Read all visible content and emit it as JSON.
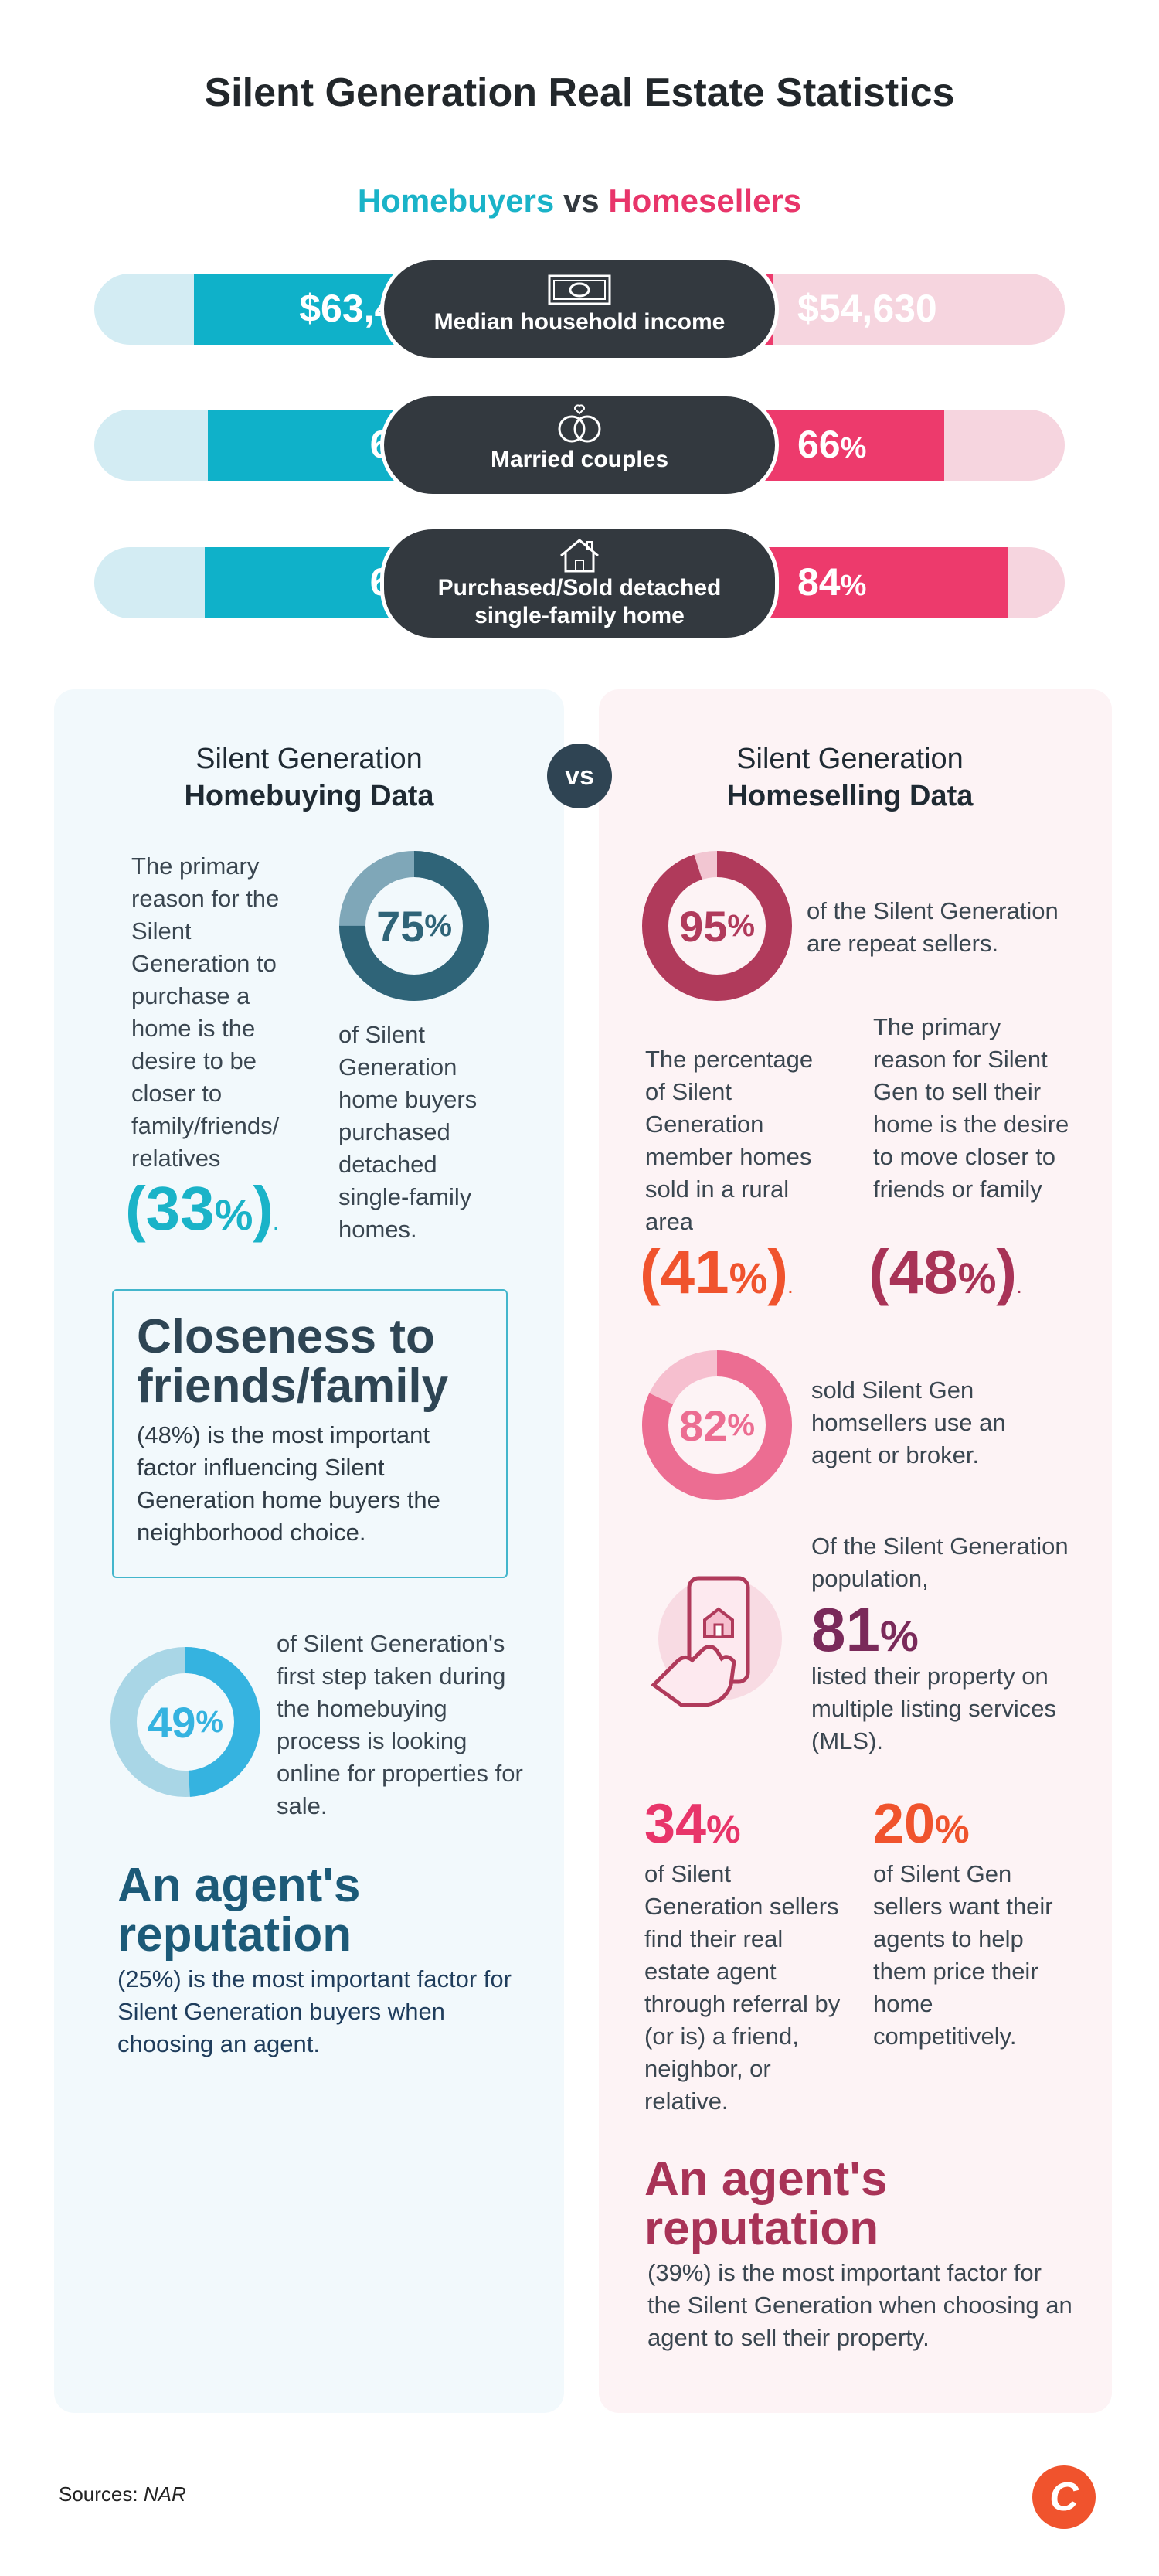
{
  "header": {
    "title": "Silent Generation Real Estate Statistics",
    "buyers_label": "Homebuyers",
    "vs_label": "vs",
    "sellers_label": "Homesellers"
  },
  "comparison": [
    {
      "label": "Median household income",
      "buyer": "$63,400",
      "seller": "$54,630",
      "icon": "money-icon"
    },
    {
      "label": "Married couples",
      "buyer": "68",
      "seller": "66",
      "icon": "rings-icon"
    },
    {
      "label": "Purchased/Sold detached single-family home",
      "buyer": "69",
      "seller": "84",
      "icon": "house-icon"
    }
  ],
  "comparison_fill": [
    {
      "buyer": 0.72,
      "seller": 0.18
    },
    {
      "buyer": 0.68,
      "seller": 0.66
    },
    {
      "buyer": 0.69,
      "seller": 0.84
    }
  ],
  "percent_sign": "%",
  "vs": "vs",
  "buying": {
    "heading_line1": "Silent Generation",
    "heading_line2": "Homebuying Data",
    "reason_text": "The primary reason for the Silent Generation to purchase a home is the desire to be closer to family/friends/ relatives",
    "reason_value": "33",
    "donut1_value": "75",
    "donut1_fraction": 0.75,
    "donut1_text": "of Silent Generation home buyers purchased detached single-family homes.",
    "box_title": "Closeness to friends/family",
    "box_text": "(48%) is the most important factor influencing Silent Generation home buyers the neighborhood choice.",
    "donut2_value": "49",
    "donut2_fraction": 0.49,
    "donut2_text": "of Silent Generation's first step taken during the homebuying process is looking online for properties for sale.",
    "rep_title": "An agent's reputation",
    "rep_text": "(25%) is the most important factor for Silent Generation buyers when choosing an agent."
  },
  "selling": {
    "heading_line1": "Silent Generation",
    "heading_line2": "Homeselling Data",
    "donut1_value": "95",
    "donut1_fraction": 0.95,
    "donut1_text": "of the Silent Generation are repeat sellers.",
    "rural_text": "The percentage of Silent Generation member homes sold in a rural area",
    "rural_value": "41",
    "reason_text": "The primary reason for Silent Gen to sell their home is the desire to move closer to friends or family",
    "reason_value": "48",
    "donut2_value": "82",
    "donut2_fraction": 0.82,
    "donut2_text": "sold Silent Gen homsellers use an agent or broker.",
    "mls_intro": "Of the Silent Generation population,",
    "mls_value": "81",
    "mls_text": "listed their property on multiple listing services (MLS).",
    "referral_value": "34",
    "referral_text": "of Silent Generation sellers find their real estate agent through referral by (or is) a friend, neighbor, or relative.",
    "price_value": "20",
    "price_text": "of Silent Gen sellers want their agents to help them price their home competitively.",
    "rep_title": "An agent's reputation",
    "rep_text": "(39%) is the most important factor for the Silent Generation when choosing an agent to sell their property."
  },
  "footer": {
    "sources_label": "Sources:",
    "sources_value": "NAR",
    "logo_letter": "C"
  },
  "colors": {
    "teal": "#0fb1c9",
    "pink": "#ed3a6c",
    "dark": "#33393f",
    "buy_donut1": "#2f6478",
    "buy_donut2": "#35b3e0",
    "sell_donut1": "#b03a5b",
    "sell_donut2": "#ec6d92",
    "orange": "#f0532d",
    "crimson": "#a83357"
  }
}
